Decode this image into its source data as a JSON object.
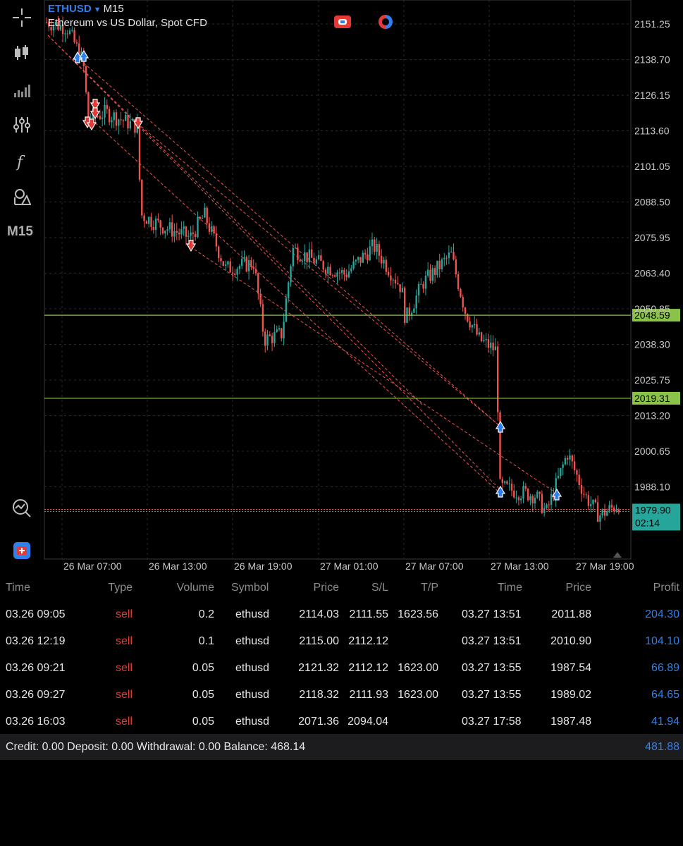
{
  "symbol": {
    "name": "ETHUSD",
    "timeframe": "M15",
    "description": "Ethereum vs US Dollar, Spot CFD"
  },
  "toolbar": {
    "timeframe_label": "M15"
  },
  "chart_data": {
    "type": "candlestick",
    "price_ticks": [
      "2151.25",
      "2138.70",
      "2126.15",
      "2113.60",
      "2101.05",
      "2088.50",
      "2075.95",
      "2063.40",
      "2050.85",
      "2038.30",
      "2025.75",
      "2013.20",
      "2000.65",
      "1988.10"
    ],
    "time_ticks": [
      "26 Mar 07:00",
      "26 Mar 13:00",
      "26 Mar 19:00",
      "27 Mar 01:00",
      "27 Mar 07:00",
      "27 Mar 13:00",
      "27 Mar 19:00"
    ],
    "levels": [
      {
        "price": "2048.59"
      },
      {
        "price": "2019.31"
      }
    ],
    "current_price": "1979.90",
    "countdown": "02:14",
    "colors": {
      "up": "#26a69a",
      "down": "#ef5350",
      "level": "#8bc34a",
      "grid": "#2a2a2a",
      "bg": "#000000"
    }
  },
  "trades": {
    "headers": {
      "time": "Time",
      "type": "Type",
      "volume": "Volume",
      "symbol": "Symbol",
      "price": "Price",
      "sl": "S/L",
      "tp": "T/P",
      "close_time": "Time",
      "close_price": "Price",
      "profit": "Profit"
    },
    "rows": [
      {
        "time": "03.26 09:05",
        "type": "sell",
        "volume": "0.2",
        "symbol": "ethusd",
        "price": "2114.03",
        "sl": "2111.55",
        "tp": "1623.56",
        "close_time": "03.27 13:51",
        "close_price": "2011.88",
        "profit": "204.30"
      },
      {
        "time": "03.26 12:19",
        "type": "sell",
        "volume": "0.1",
        "symbol": "ethusd",
        "price": "2115.00",
        "sl": "2112.12",
        "tp": "",
        "close_time": "03.27 13:51",
        "close_price": "2010.90",
        "profit": "104.10"
      },
      {
        "time": "03.26 09:21",
        "type": "sell",
        "volume": "0.05",
        "symbol": "ethusd",
        "price": "2121.32",
        "sl": "2112.12",
        "tp": "1623.00",
        "close_time": "03.27 13:55",
        "close_price": "1987.54",
        "profit": "66.89"
      },
      {
        "time": "03.26 09:27",
        "type": "sell",
        "volume": "0.05",
        "symbol": "ethusd",
        "price": "2118.32",
        "sl": "2111.93",
        "tp": "1623.00",
        "close_time": "03.27 13:55",
        "close_price": "1989.02",
        "profit": "64.65"
      },
      {
        "time": "03.26 16:03",
        "type": "sell",
        "volume": "0.05",
        "symbol": "ethusd",
        "price": "2071.36",
        "sl": "2094.04",
        "tp": "",
        "close_time": "03.27 17:58",
        "close_price": "1987.48",
        "profit": "41.94"
      }
    ]
  },
  "summary": {
    "text": "Credit: 0.00 Deposit: 0.00 Withdrawal: 0.00 Balance: 468.14",
    "total": "481.88"
  }
}
